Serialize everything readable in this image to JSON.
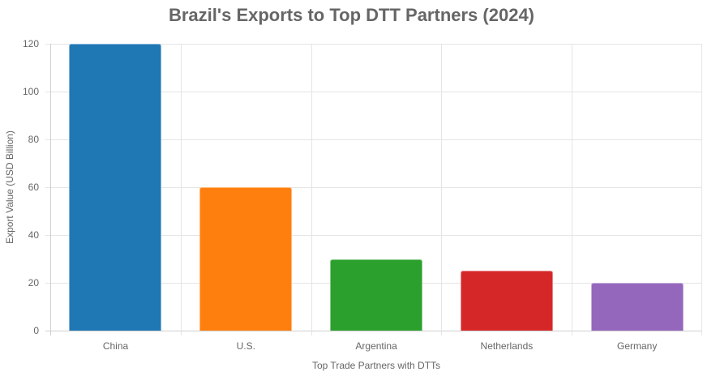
{
  "chart_data": {
    "type": "bar",
    "title": "Brazil's Exports to Top DTT Partners (2024)",
    "xlabel": "Top Trade Partners with DTTs",
    "ylabel": "Export Value (USD Billion)",
    "categories": [
      "China",
      "U.S.",
      "Argentina",
      "Netherlands",
      "Germany"
    ],
    "values": [
      120,
      60,
      30,
      25,
      20
    ],
    "colors": [
      "#1f77b4",
      "#ff7f0e",
      "#2ca02c",
      "#d62728",
      "#9467bd"
    ],
    "ylim": [
      0,
      120
    ],
    "yticks": [
      0,
      20,
      40,
      60,
      80,
      100,
      120
    ],
    "grid": true,
    "legend": "none"
  }
}
